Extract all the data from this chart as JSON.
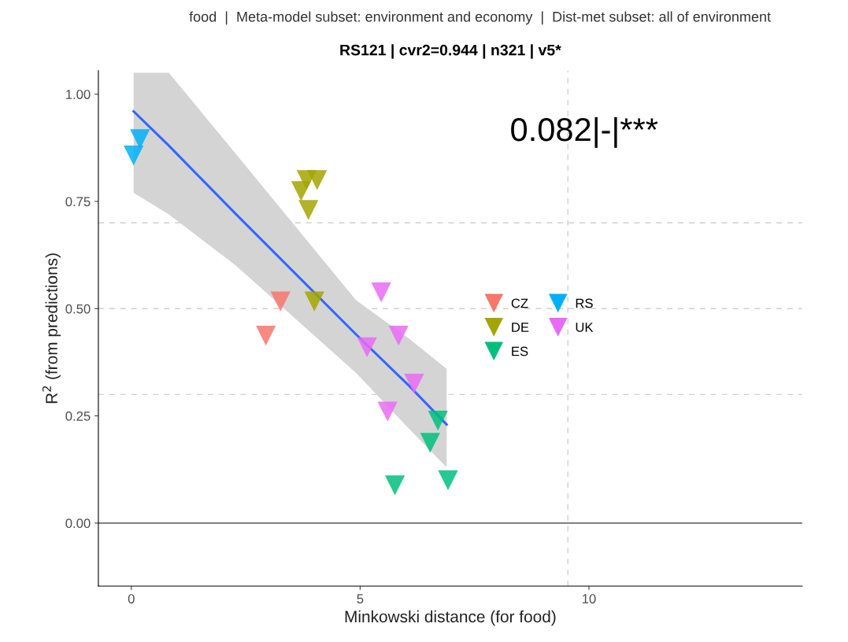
{
  "chart_data": {
    "type": "scatter",
    "subtitle": "food  |  Meta-model subset: environment and economy  |  Dist-met subset: all of environment",
    "title": "RS121 | cvr2=0.944 | n321 | v5*",
    "xlabel": "Minkowski distance (for food)",
    "ylabel": "R$^{2}$ (from predictions)",
    "annotations": [
      "0.082|-|***"
    ],
    "marker": "triangle",
    "grid": false,
    "legend": "right",
    "xlim": [
      -0.72,
      14.66
    ],
    "xticks": [
      0,
      5,
      10
    ],
    "ylim": [
      -0.147,
      1.055
    ],
    "yticks": [
      {
        "value": 0,
        "label": "0.00"
      },
      {
        "value": 0.25,
        "label": "0.25"
      },
      {
        "value": 0.5,
        "label": "0.50"
      },
      {
        "value": 0.75,
        "label": "0.75"
      },
      {
        "value": 1,
        "label": "1.00"
      }
    ],
    "ref_lines": [
      {
        "axis": "x",
        "value": 9.54,
        "color": "#d0d0d0",
        "line_style": "dashed"
      },
      {
        "axis": "y",
        "value": 0.7,
        "color": "#d0d0d0",
        "line_style": "dashed"
      },
      {
        "axis": "y",
        "value": 0.5,
        "color": "#d0d0d0",
        "line_style": "dashed"
      },
      {
        "axis": "y",
        "value": 0.3,
        "color": "#d0d0d0",
        "line_style": "dashed"
      },
      {
        "axis": "y",
        "value": 0,
        "color": "#333333",
        "line_style": "solid"
      }
    ],
    "series": [
      {
        "type": "line",
        "marker": "none",
        "color": "#3366ff",
        "x": [
          0.05,
          0.82,
          2.29,
          4.91,
          6.07,
          6.89
        ],
        "values": [
          0.96,
          0.88,
          0.72,
          0.44,
          0.32,
          0.23
        ],
        "lower": [
          0.77,
          0.72,
          0.6,
          0.35,
          0.22,
          0.13
        ],
        "upper": [
          1.05,
          1.05,
          0.86,
          0.52,
          0.43,
          0.36
        ]
      },
      {
        "name": "CZ",
        "color": "#f8766d",
        "x": [
          3.26,
          2.94
        ],
        "values": [
          0.517,
          0.437
        ]
      },
      {
        "name": "DE",
        "color": "#a3a500",
        "x": [
          3.83,
          4.06,
          3.71,
          3.87,
          4.0
        ],
        "values": [
          0.8,
          0.8,
          0.774,
          0.73,
          0.517
        ]
      },
      {
        "name": "ES",
        "color": "#00bf7d",
        "x": [
          6.7,
          6.53,
          5.76,
          6.92
        ],
        "values": [
          0.239,
          0.187,
          0.088,
          0.1
        ]
      },
      {
        "name": "RS",
        "color": "#00b0f6",
        "x": [
          0.19,
          0.05
        ],
        "values": [
          0.895,
          0.857
        ]
      },
      {
        "name": "UK",
        "color": "#e76bf3",
        "x": [
          5.46,
          5.84,
          5.15,
          6.18,
          5.6
        ],
        "values": [
          0.538,
          0.437,
          0.41,
          0.325,
          0.26
        ]
      }
    ]
  }
}
